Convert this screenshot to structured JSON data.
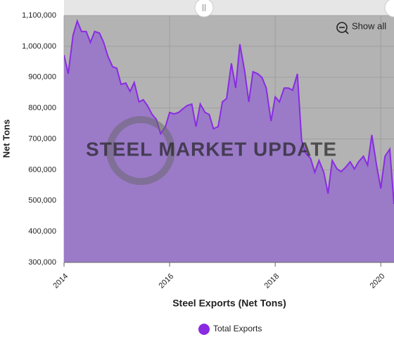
{
  "chart_data": {
    "type": "area",
    "xlabel": "Steel Exports (Net Tons)",
    "ylabel": "Net Tons",
    "watermark": "STEEL MARKET UPDATE",
    "button": "Show all",
    "xlim": [
      2014,
      2020.25
    ],
    "xticks": [
      2014,
      2016,
      2018,
      2020
    ],
    "ylim": [
      300000,
      1100000
    ],
    "yticks": [
      {
        "value": 300000,
        "label": "300,000"
      },
      {
        "value": 400000,
        "label": "400,000"
      },
      {
        "value": 500000,
        "label": "500,000"
      },
      {
        "value": 600000,
        "label": "600,000"
      },
      {
        "value": 700000,
        "label": "700,000"
      },
      {
        "value": 800000,
        "label": "800,000"
      },
      {
        "value": 900000,
        "label": "900,000"
      },
      {
        "value": 1000000,
        "label": "1,000,000"
      },
      {
        "value": 1100000,
        "label": "1,100,000"
      }
    ],
    "grid": true,
    "legend": "bottom",
    "x": [
      2014,
      2014.08,
      2014.17,
      2014.25,
      2014.33,
      2014.42,
      2014.5,
      2014.58,
      2014.67,
      2014.75,
      2014.83,
      2014.92,
      2015,
      2015.08,
      2015.17,
      2015.25,
      2015.33,
      2015.42,
      2015.5,
      2015.58,
      2015.67,
      2015.75,
      2015.83,
      2015.92,
      2016,
      2016.08,
      2016.17,
      2016.25,
      2016.33,
      2016.42,
      2016.5,
      2016.58,
      2016.67,
      2016.75,
      2016.83,
      2016.92,
      2017,
      2017.08,
      2017.17,
      2017.25,
      2017.33,
      2017.42,
      2017.5,
      2017.58,
      2017.67,
      2017.75,
      2017.83,
      2017.92,
      2018,
      2018.08,
      2018.17,
      2018.25,
      2018.33,
      2018.42,
      2018.5,
      2018.58,
      2018.67,
      2018.75,
      2018.83,
      2018.92,
      2019,
      2019.08,
      2019.17,
      2019.25,
      2019.33,
      2019.42,
      2019.5,
      2019.58,
      2019.67,
      2019.75,
      2019.83,
      2019.92,
      2020,
      2020.08,
      2020.17,
      2020.25
    ],
    "series": [
      {
        "name": "Total Exports",
        "color": "#8a2be2",
        "fill": "#9b7bc8",
        "values": [
          972000,
          911000,
          1036000,
          1082000,
          1048000,
          1048000,
          1013000,
          1048000,
          1043000,
          1013000,
          968000,
          934000,
          929000,
          877000,
          881000,
          854000,
          883000,
          820000,
          827000,
          808000,
          779000,
          763000,
          717000,
          740000,
          786000,
          781000,
          786000,
          797000,
          808000,
          813000,
          740000,
          813000,
          786000,
          779000,
          733000,
          740000,
          820000,
          831000,
          945000,
          865000,
          1007000,
          922000,
          820000,
          918000,
          911000,
          899000,
          865000,
          758000,
          836000,
          820000,
          865000,
          865000,
          858000,
          911000,
          694000,
          653000,
          637000,
          592000,
          630000,
          592000,
          523000,
          630000,
          603000,
          594000,
          608000,
          626000,
          603000,
          626000,
          644000,
          615000,
          713000,
          615000,
          539000,
          644000,
          667000,
          489000
        ]
      }
    ]
  }
}
